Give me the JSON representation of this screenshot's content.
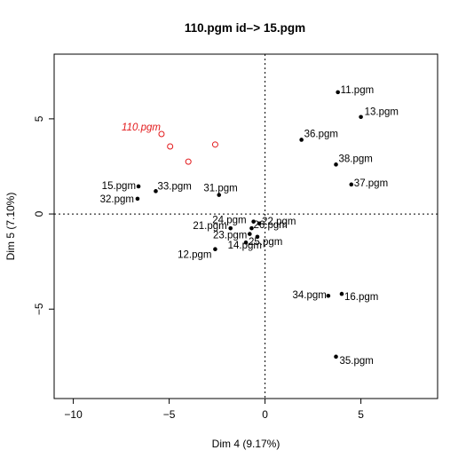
{
  "chart_data": {
    "type": "scatter",
    "title": "110.pgm  id–>  15.pgm",
    "xlabel": "Dim 4 (9.17%)",
    "ylabel": "Dim 5 (7.10%)",
    "xlim": [
      -11,
      9
    ],
    "ylim": [
      -9.7,
      8.4
    ],
    "x_ticks": [
      -10,
      -5,
      0,
      5
    ],
    "y_ticks": [
      -5,
      0,
      5
    ],
    "x_tick_labels": [
      "−10",
      "−5",
      "0",
      "5"
    ],
    "y_tick_labels": [
      "−5",
      "0",
      "5"
    ],
    "grid": false,
    "reference_lines": "dotted lines at x = 0 and y = 0",
    "colors": {
      "points": "#000000",
      "highlight": "#e31a1c",
      "frame": "#000000"
    },
    "points": [
      {
        "label": "11.pgm",
        "x": 3.8,
        "y": 6.4
      },
      {
        "label": "13.pgm",
        "x": 5.0,
        "y": 5.1
      },
      {
        "label": "36.pgm",
        "x": 1.9,
        "y": 3.9
      },
      {
        "label": "38.pgm",
        "x": 3.7,
        "y": 2.6
      },
      {
        "label": "37.pgm",
        "x": 4.5,
        "y": 1.55
      },
      {
        "label": "15.pgm",
        "x": -6.6,
        "y": 1.45
      },
      {
        "label": "33.pgm",
        "x": -5.7,
        "y": 1.2
      },
      {
        "label": "32.pgm",
        "x": -6.65,
        "y": 0.8
      },
      {
        "label": "31.pgm",
        "x": -2.4,
        "y": 1.0
      },
      {
        "label": "24.pgm",
        "x": -0.6,
        "y": -0.4
      },
      {
        "label": "22.pgm",
        "x": -0.3,
        "y": -0.5
      },
      {
        "label": "26.pgm",
        "x": -0.7,
        "y": -0.75
      },
      {
        "label": "21.pgm",
        "x": -1.8,
        "y": -0.75
      },
      {
        "label": "23.pgm",
        "x": -0.8,
        "y": -1.05
      },
      {
        "label": "25.pgm",
        "x": -0.4,
        "y": -1.2
      },
      {
        "label": "14.pgm",
        "x": -1.0,
        "y": -1.5
      },
      {
        "label": "12.pgm",
        "x": -2.6,
        "y": -1.85
      },
      {
        "label": "34.pgm",
        "x": 3.3,
        "y": -4.3
      },
      {
        "label": "16.pgm",
        "x": 4.0,
        "y": -4.2
      },
      {
        "label": "35.pgm",
        "x": 3.7,
        "y": -7.5
      }
    ],
    "highlight_series": {
      "label": "110.pgm",
      "labeled_point": {
        "x": -5.4,
        "y": 4.2
      },
      "points": [
        {
          "x": -5.4,
          "y": 4.2
        },
        {
          "x": -4.95,
          "y": 3.55
        },
        {
          "x": -4.0,
          "y": 2.75
        },
        {
          "x": -2.6,
          "y": 3.65
        }
      ]
    }
  }
}
